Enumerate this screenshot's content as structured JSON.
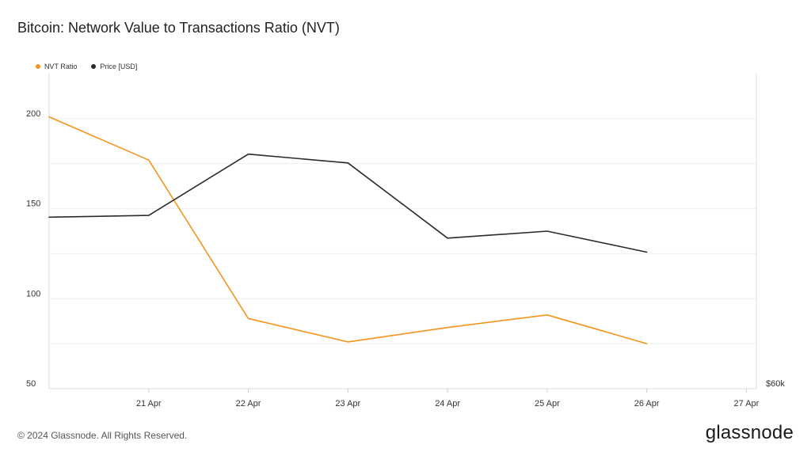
{
  "title": "Bitcoin: Network Value to Transactions Ratio (NVT)",
  "footer": {
    "copyright": "© 2024 Glassnode. All Rights Reserved.",
    "brand": "glassnode"
  },
  "colors": {
    "nvt": "#f7931a",
    "price": "#2b2b2b",
    "grid": "#eeeeee",
    "axis": "#dddddd"
  },
  "chart_data": {
    "type": "line",
    "title": "Bitcoin: Network Value to Transactions Ratio (NVT)",
    "legend": {
      "position": "top-left",
      "entries": [
        "NVT Ratio",
        "Price [USD]"
      ]
    },
    "grid": true,
    "x": [
      "2024-04-20",
      "2024-04-21",
      "2024-04-22",
      "2024-04-23",
      "2024-04-24",
      "2024-04-25",
      "2024-04-26"
    ],
    "x_ticks": [
      {
        "x": "2024-04-21",
        "label": "21 Apr"
      },
      {
        "x": "2024-04-22",
        "label": "22 Apr"
      },
      {
        "x": "2024-04-23",
        "label": "23 Apr"
      },
      {
        "x": "2024-04-24",
        "label": "24 Apr"
      },
      {
        "x": "2024-04-25",
        "label": "25 Apr"
      },
      {
        "x": "2024-04-26",
        "label": "26 Apr"
      },
      {
        "x": "2024-04-27",
        "label": "27 Apr"
      }
    ],
    "xlim": [
      "2024-04-20",
      "2024-04-27.1"
    ],
    "y_left": {
      "ticks": [
        50,
        100,
        150,
        200
      ],
      "lim": [
        50,
        225
      ]
    },
    "y_right": {
      "ticks": [
        {
          "value": 60000,
          "label": "$60k"
        }
      ],
      "lim": [
        60000,
        69000
      ]
    },
    "series": [
      {
        "name": "NVT Ratio",
        "axis": "left",
        "color": "#f7931a",
        "values": [
          201,
          177,
          89,
          76,
          84,
          91,
          75
        ]
      },
      {
        "name": "Price [USD]",
        "axis": "right",
        "color": "#2b2b2b",
        "values": [
          64900,
          64950,
          66700,
          66450,
          64300,
          64500,
          63900
        ]
      }
    ]
  }
}
